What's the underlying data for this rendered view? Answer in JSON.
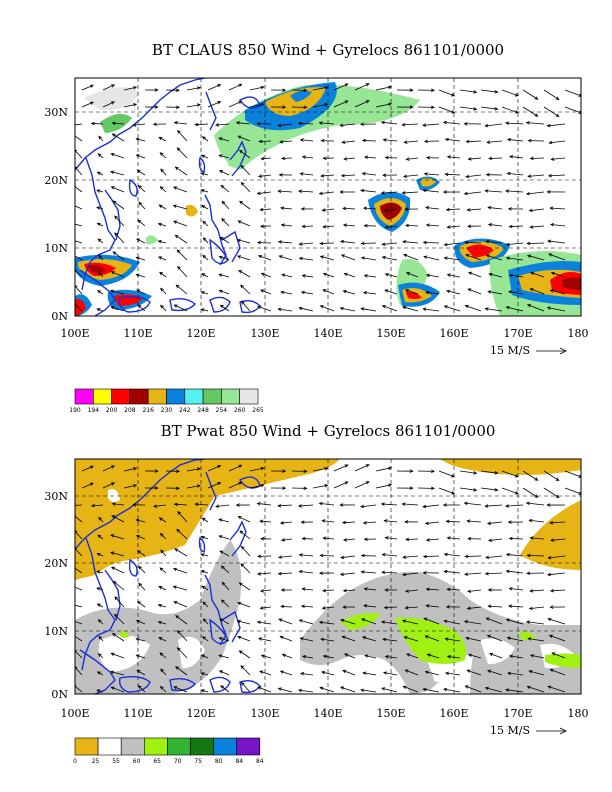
{
  "chart_data": [
    {
      "type": "vector-map",
      "title": "BT CLAUS 850 Wind + Gyrelocs 861101/0000",
      "x_ticks": [
        "100E",
        "110E",
        "120E",
        "130E",
        "140E",
        "150E",
        "160E",
        "170E",
        "180"
      ],
      "y_ticks": [
        "0N",
        "10N",
        "20N",
        "30N"
      ],
      "xlim": [
        100,
        180
      ],
      "ylim": [
        0,
        35
      ],
      "reference_vector": "15 M/S",
      "colorbar": {
        "labels": [
          "190",
          "194",
          "200",
          "208",
          "216",
          "230",
          "242",
          "248",
          "254",
          "260",
          "265"
        ],
        "colors": [
          "#ff00ff",
          "#ffff00",
          "#ff0000",
          "#a00000",
          "#e6b414",
          "#0a82dc",
          "#55f0f0",
          "#64c864",
          "#96e696",
          "#e6e6e6"
        ]
      },
      "wind_regimes": [
        {
          "lon": [
            100,
            130
          ],
          "lat": [
            10,
            35
          ],
          "u": -6,
          "v": -3
        },
        {
          "lon": [
            130,
            180
          ],
          "lat": [
            0,
            35
          ],
          "u": -9,
          "v": 0
        }
      ]
    },
    {
      "type": "vector-map",
      "title": "BT Pwat 850 Wind + Gyrelocs 861101/0000",
      "x_ticks": [
        "100E",
        "110E",
        "120E",
        "130E",
        "140E",
        "150E",
        "160E",
        "170E",
        "180"
      ],
      "y_ticks": [
        "0N",
        "10N",
        "20N",
        "30N"
      ],
      "xlim": [
        100,
        180
      ],
      "ylim": [
        0,
        35
      ],
      "reference_vector": "15 M/S",
      "colorbar": {
        "labels": [
          "0",
          "25",
          "55",
          "60",
          "65",
          "70",
          "75",
          "80",
          "84",
          "84"
        ],
        "colors": [
          "#e6b414",
          "#ffffff",
          "#c0c0c0",
          "#a0f014",
          "#32b432",
          "#147814",
          "#0a82dc",
          "#7814c8"
        ]
      }
    }
  ]
}
